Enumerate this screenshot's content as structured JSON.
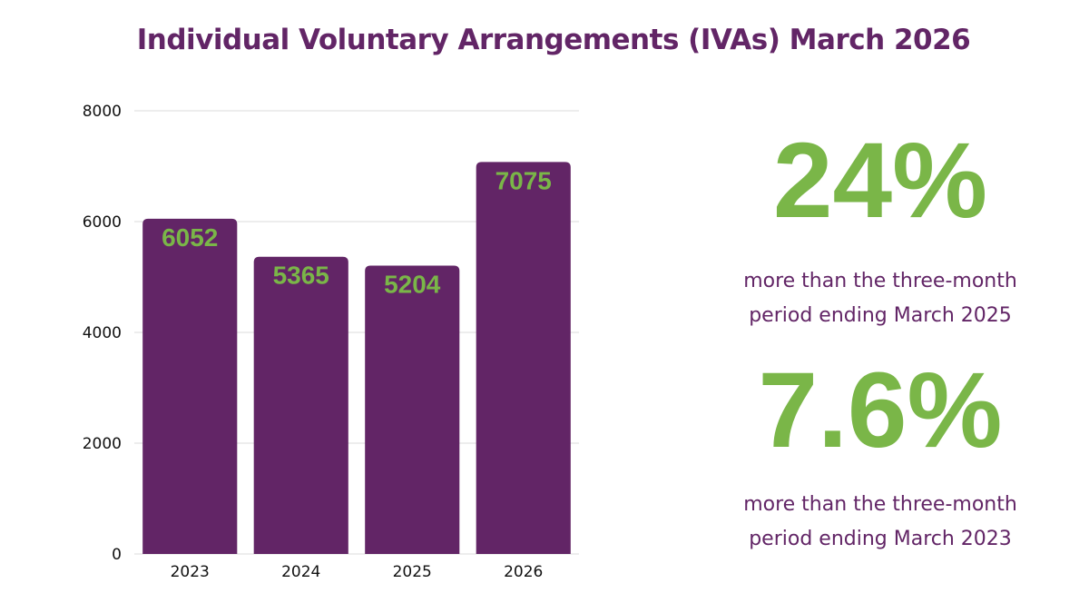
{
  "colors": {
    "bar": "#622566",
    "data_label": "#7ab648",
    "title": "#622566",
    "stat_value": "#7ab648",
    "stat_text": "#622566",
    "grid": "#e2e2e2"
  },
  "chart_data": {
    "type": "bar",
    "title": "Individual Voluntary Arrangements (IVAs) March 2026",
    "xlabel": "",
    "ylabel": "",
    "categories": [
      "2023",
      "2024",
      "2025",
      "2026"
    ],
    "values": [
      6052,
      5365,
      5204,
      7075
    ],
    "data_labels": [
      "6052",
      "5365",
      "5204",
      "7075"
    ],
    "ylim": [
      0,
      8000
    ],
    "yticks": [
      0,
      2000,
      4000,
      6000,
      8000
    ],
    "ytick_labels": [
      "0",
      "2000",
      "4000",
      "6000",
      "8000"
    ],
    "grid": true,
    "legend": "none"
  },
  "stats": [
    {
      "value": "24%",
      "line1": "more than the three-month",
      "line2": "period ending March 2025"
    },
    {
      "value": "7.6%",
      "line1": "more than the three-month",
      "line2": "period ending March 2023"
    }
  ]
}
